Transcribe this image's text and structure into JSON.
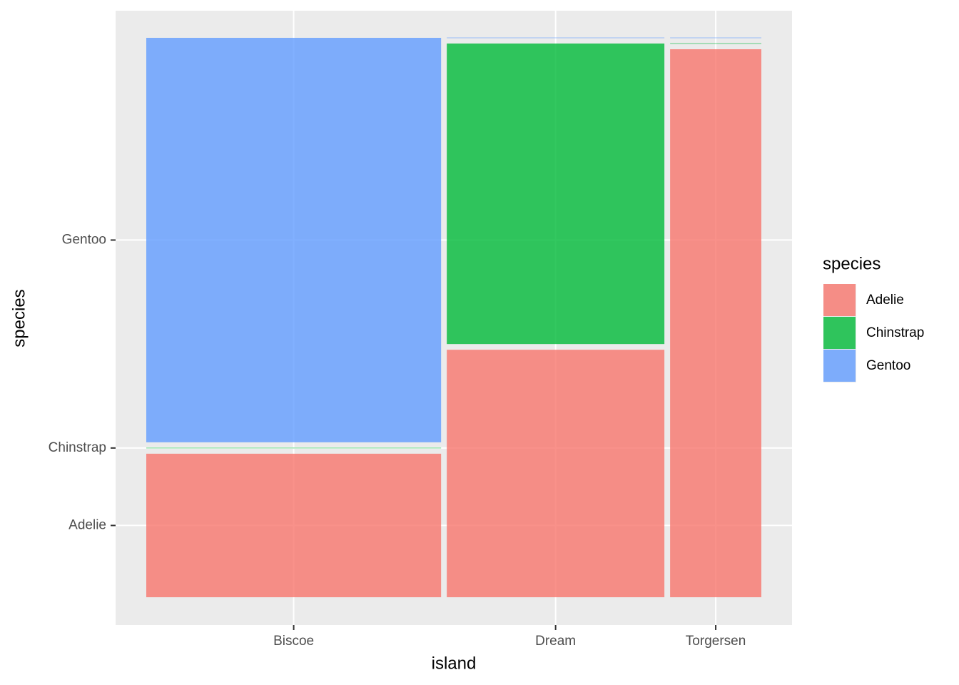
{
  "chart_data": {
    "type": "mosaic",
    "x_label": "island",
    "y_label": "species",
    "legend_title": "species",
    "categories": [
      "Biscoe",
      "Dream",
      "Torgersen"
    ],
    "series": [
      {
        "name": "Adelie",
        "color": "#F8766D",
        "values": [
          44,
          56,
          52
        ]
      },
      {
        "name": "Chinstrap",
        "color": "#00BA38",
        "values": [
          0,
          68,
          0
        ]
      },
      {
        "name": "Gentoo",
        "color": "#619CFF",
        "values": [
          124,
          0,
          0
        ]
      }
    ],
    "grid": true,
    "legend_position": "right"
  }
}
